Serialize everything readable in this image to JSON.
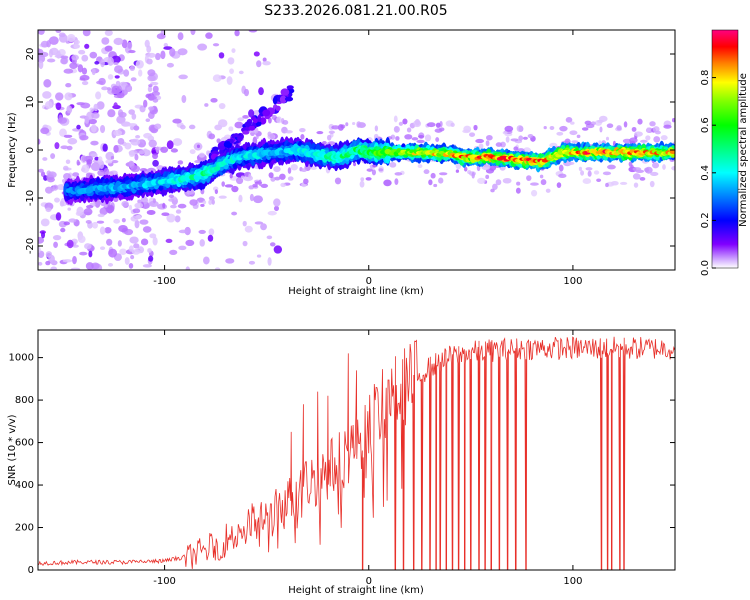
{
  "title": "S233.2026.081.21.00.R05",
  "chart_data": [
    {
      "type": "heatmap",
      "xlabel": "Height of straight line (km)",
      "ylabel": "Frequency (Hz)",
      "xlim": [
        -162,
        150
      ],
      "ylim": [
        -25,
        25
      ],
      "xticks": [
        -100,
        0,
        100
      ],
      "yticks": [
        -20,
        -10,
        0,
        10,
        20
      ],
      "colorbar": {
        "label": "Normalized spectral amplitude",
        "range": [
          0,
          1
        ],
        "ticks": [
          "0.0",
          "0.2",
          "0.4",
          "0.6",
          "0.8"
        ],
        "colors": [
          "#ffffff",
          "#d8b8ff",
          "#8000ff",
          "#0000ff",
          "#0080ff",
          "#00ffff",
          "#00ff80",
          "#00ff00",
          "#80ff00",
          "#ffff00",
          "#ff8000",
          "#ff0000",
          "#ff0080"
        ]
      },
      "ridge": {
        "x": [
          -145,
          -130,
          -115,
          -100,
          -90,
          -80,
          -72,
          -65,
          -55,
          -45,
          -35,
          -25,
          -15,
          -5,
          0,
          20,
          40,
          45,
          60,
          85,
          95,
          110,
          130,
          150
        ],
        "freq": [
          -8.5,
          -8,
          -7.5,
          -6.5,
          -6,
          -5,
          -3,
          -1.5,
          -1,
          -0.5,
          0,
          -1,
          -1.5,
          0,
          -0.5,
          -0.5,
          -0.8,
          -1.5,
          -1.5,
          -2.5,
          -0.5,
          -0.5,
          -0.5,
          -0.5
        ],
        "amplitude": [
          0.3,
          0.35,
          0.35,
          0.4,
          0.45,
          0.5,
          0.45,
          0.4,
          0.4,
          0.35,
          0.4,
          0.45,
          0.5,
          0.55,
          0.6,
          0.75,
          0.8,
          0.85,
          0.9,
          0.9,
          0.85,
          0.9,
          0.9,
          0.8
        ]
      }
    },
    {
      "type": "line",
      "xlabel": "Height of straight line (km)",
      "ylabel": "SNR (10 * v/v)",
      "xlim": [
        -162,
        150
      ],
      "ylim": [
        0,
        1130
      ],
      "xticks": [
        -100,
        0,
        100
      ],
      "yticks": [
        0,
        200,
        400,
        600,
        800,
        1000
      ],
      "series": [
        {
          "name": "SNR",
          "color": "#e8302a",
          "envelope_x": [
            -162,
            -140,
            -120,
            -100,
            -90,
            -80,
            -70,
            -60,
            -50,
            -40,
            -30,
            -20,
            -10,
            0,
            10,
            20,
            30,
            40,
            50,
            60,
            80,
            100,
            120,
            150
          ],
          "envelope_y": [
            30,
            35,
            35,
            40,
            60,
            100,
            150,
            220,
            250,
            330,
            420,
            480,
            570,
            700,
            830,
            900,
            960,
            1010,
            1030,
            1040,
            1050,
            1050,
            1050,
            1050
          ],
          "spikes_x": [
            -38,
            -32,
            -25,
            -20,
            -10,
            -6
          ],
          "spikes_y": [
            650,
            780,
            840,
            820,
            1020,
            940
          ],
          "dropouts_x": [
            -3,
            13,
            17,
            22,
            26,
            30,
            33,
            35,
            38,
            41,
            44,
            47,
            50,
            54,
            57,
            60,
            64,
            68,
            72,
            77,
            114,
            117,
            119,
            123,
            125
          ]
        }
      ]
    }
  ]
}
